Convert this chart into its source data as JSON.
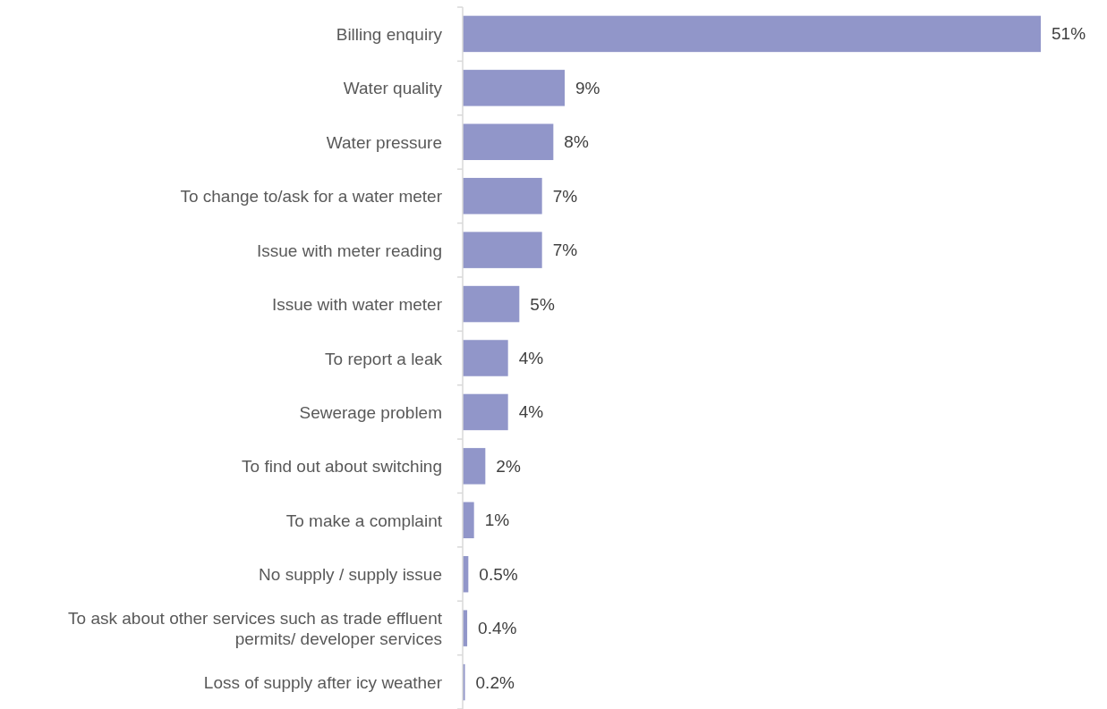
{
  "chart_data": {
    "type": "bar",
    "orientation": "horizontal",
    "relative": false,
    "categories": [
      "Billing enquiry",
      "Water quality",
      "Water pressure",
      "To change to/ask for a water meter",
      "Issue with meter reading",
      "Issue with water meter",
      "To report a leak",
      "Sewerage problem",
      "To find out about switching",
      "To make a complaint",
      "No supply / supply issue",
      "To ask about other services such as trade effluent permits/ developer services",
      "Loss of supply after icy weather"
    ],
    "values": [
      51,
      9,
      8,
      7,
      7,
      5,
      4,
      4,
      2,
      1,
      0.5,
      0.4,
      0.2
    ],
    "value_labels": [
      "51%",
      "9%",
      "8%",
      "7%",
      "7%",
      "5%",
      "4%",
      "4%",
      "2%",
      "1%",
      "0.5%",
      "0.4%",
      "0.2%"
    ],
    "color": "#9196c9"
  }
}
